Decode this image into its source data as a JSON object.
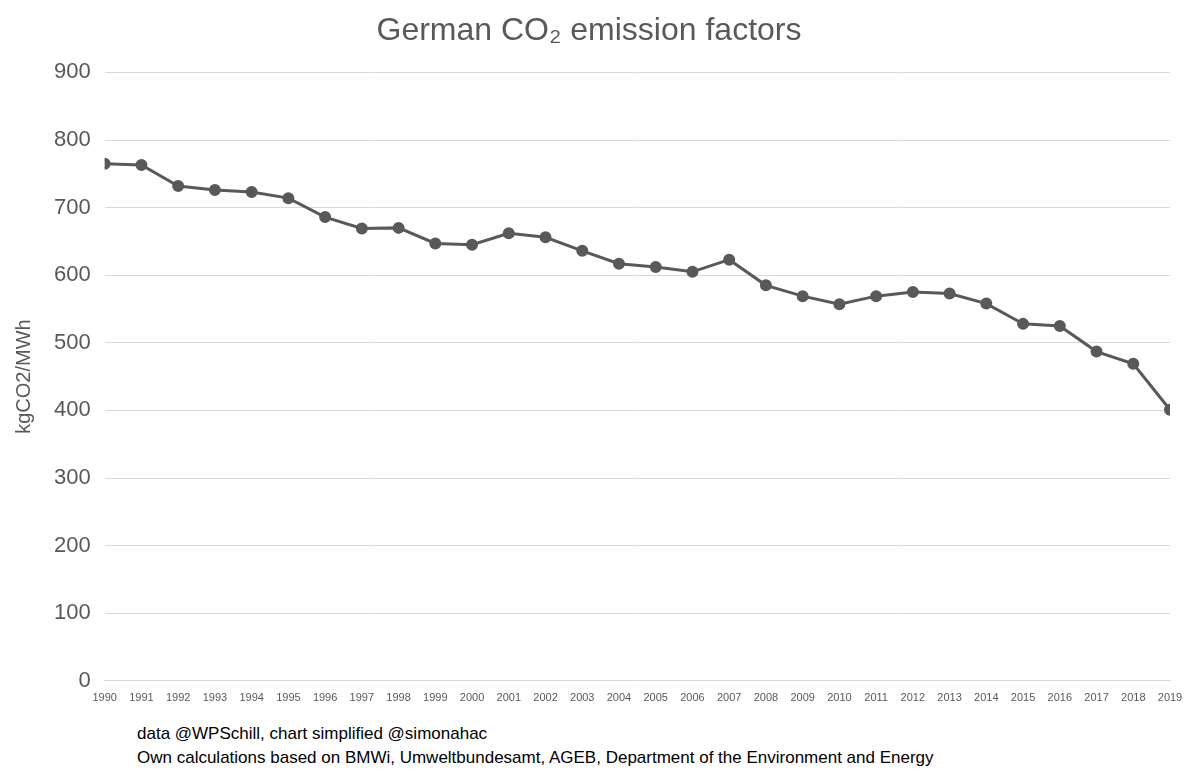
{
  "chart_data": {
    "type": "line",
    "title": "German CO₂ emission factors",
    "y_label": "kgCO2/MWh",
    "annotations": [
      "data @WPSchill, chart simplified @simonahac",
      "Own calculations based on BMWi, Umweltbundesamt, AGEB, Department of the Environment and Energy"
    ],
    "categories": [
      "1990",
      "1991",
      "1992",
      "1993",
      "1994",
      "1995",
      "1996",
      "1997",
      "1998",
      "1999",
      "2000",
      "2001",
      "2002",
      "2003",
      "2004",
      "2005",
      "2006",
      "2007",
      "2008",
      "2009",
      "2010",
      "2011",
      "2012",
      "2013",
      "2014",
      "2015",
      "2016",
      "2017",
      "2018",
      "2019"
    ],
    "values": [
      765,
      763,
      732,
      726,
      723,
      714,
      686,
      669,
      670,
      647,
      645,
      662,
      656,
      636,
      617,
      612,
      605,
      623,
      585,
      569,
      557,
      569,
      575,
      573,
      558,
      528,
      525,
      487,
      469,
      401
    ],
    "color": "#595959",
    "marker": "circle",
    "line_style": "solid",
    "ylim": [
      0,
      900
    ],
    "yticks": [
      0,
      100,
      200,
      300,
      400,
      500,
      600,
      700,
      800,
      900
    ],
    "grid": true
  }
}
